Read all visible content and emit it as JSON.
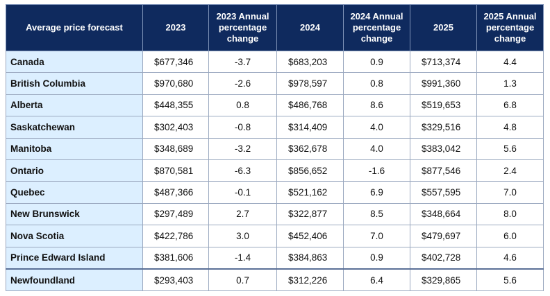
{
  "table": {
    "header": [
      "Average price forecast",
      "2023",
      "2023 Annual percentage change",
      "2024",
      "2024 Annual percentage change",
      "2025",
      "2025 Annual percentage change"
    ],
    "rows": [
      [
        "Canada",
        "$677,346",
        "-3.7",
        "$683,203",
        "0.9",
        "$713,374",
        "4.4"
      ],
      [
        "British Columbia",
        "$970,680",
        "-2.6",
        "$978,597",
        "0.8",
        "$991,360",
        "1.3"
      ],
      [
        "Alberta",
        "$448,355",
        "0.8",
        "$486,768",
        "8.6",
        "$519,653",
        "6.8"
      ],
      [
        "Saskatchewan",
        "$302,403",
        "-0.8",
        "$314,409",
        "4.0",
        "$329,516",
        "4.8"
      ],
      [
        "Manitoba",
        "$348,689",
        "-3.2",
        "$362,678",
        "4.0",
        "$383,042",
        "5.6"
      ],
      [
        "Ontario",
        "$870,581",
        "-6.3",
        "$856,652",
        "-1.6",
        "$877,546",
        "2.4"
      ],
      [
        "Quebec",
        "$487,366",
        "-0.1",
        "$521,162",
        "6.9",
        "$557,595",
        "7.0"
      ],
      [
        "New Brunswick",
        "$297,489",
        "2.7",
        "$322,877",
        "8.5",
        "$348,664",
        "8.0"
      ],
      [
        "Nova Scotia",
        "$422,786",
        "3.0",
        "$452,406",
        "7.0",
        "$479,697",
        "6.0"
      ],
      [
        "Prince Edward Island",
        "$381,606",
        "-1.4",
        "$384,863",
        "0.9",
        "$402,728",
        "4.6"
      ],
      [
        "Newfoundland",
        "$293,403",
        "0.7",
        "$312,226",
        "6.4",
        "$329,865",
        "5.6"
      ]
    ]
  }
}
